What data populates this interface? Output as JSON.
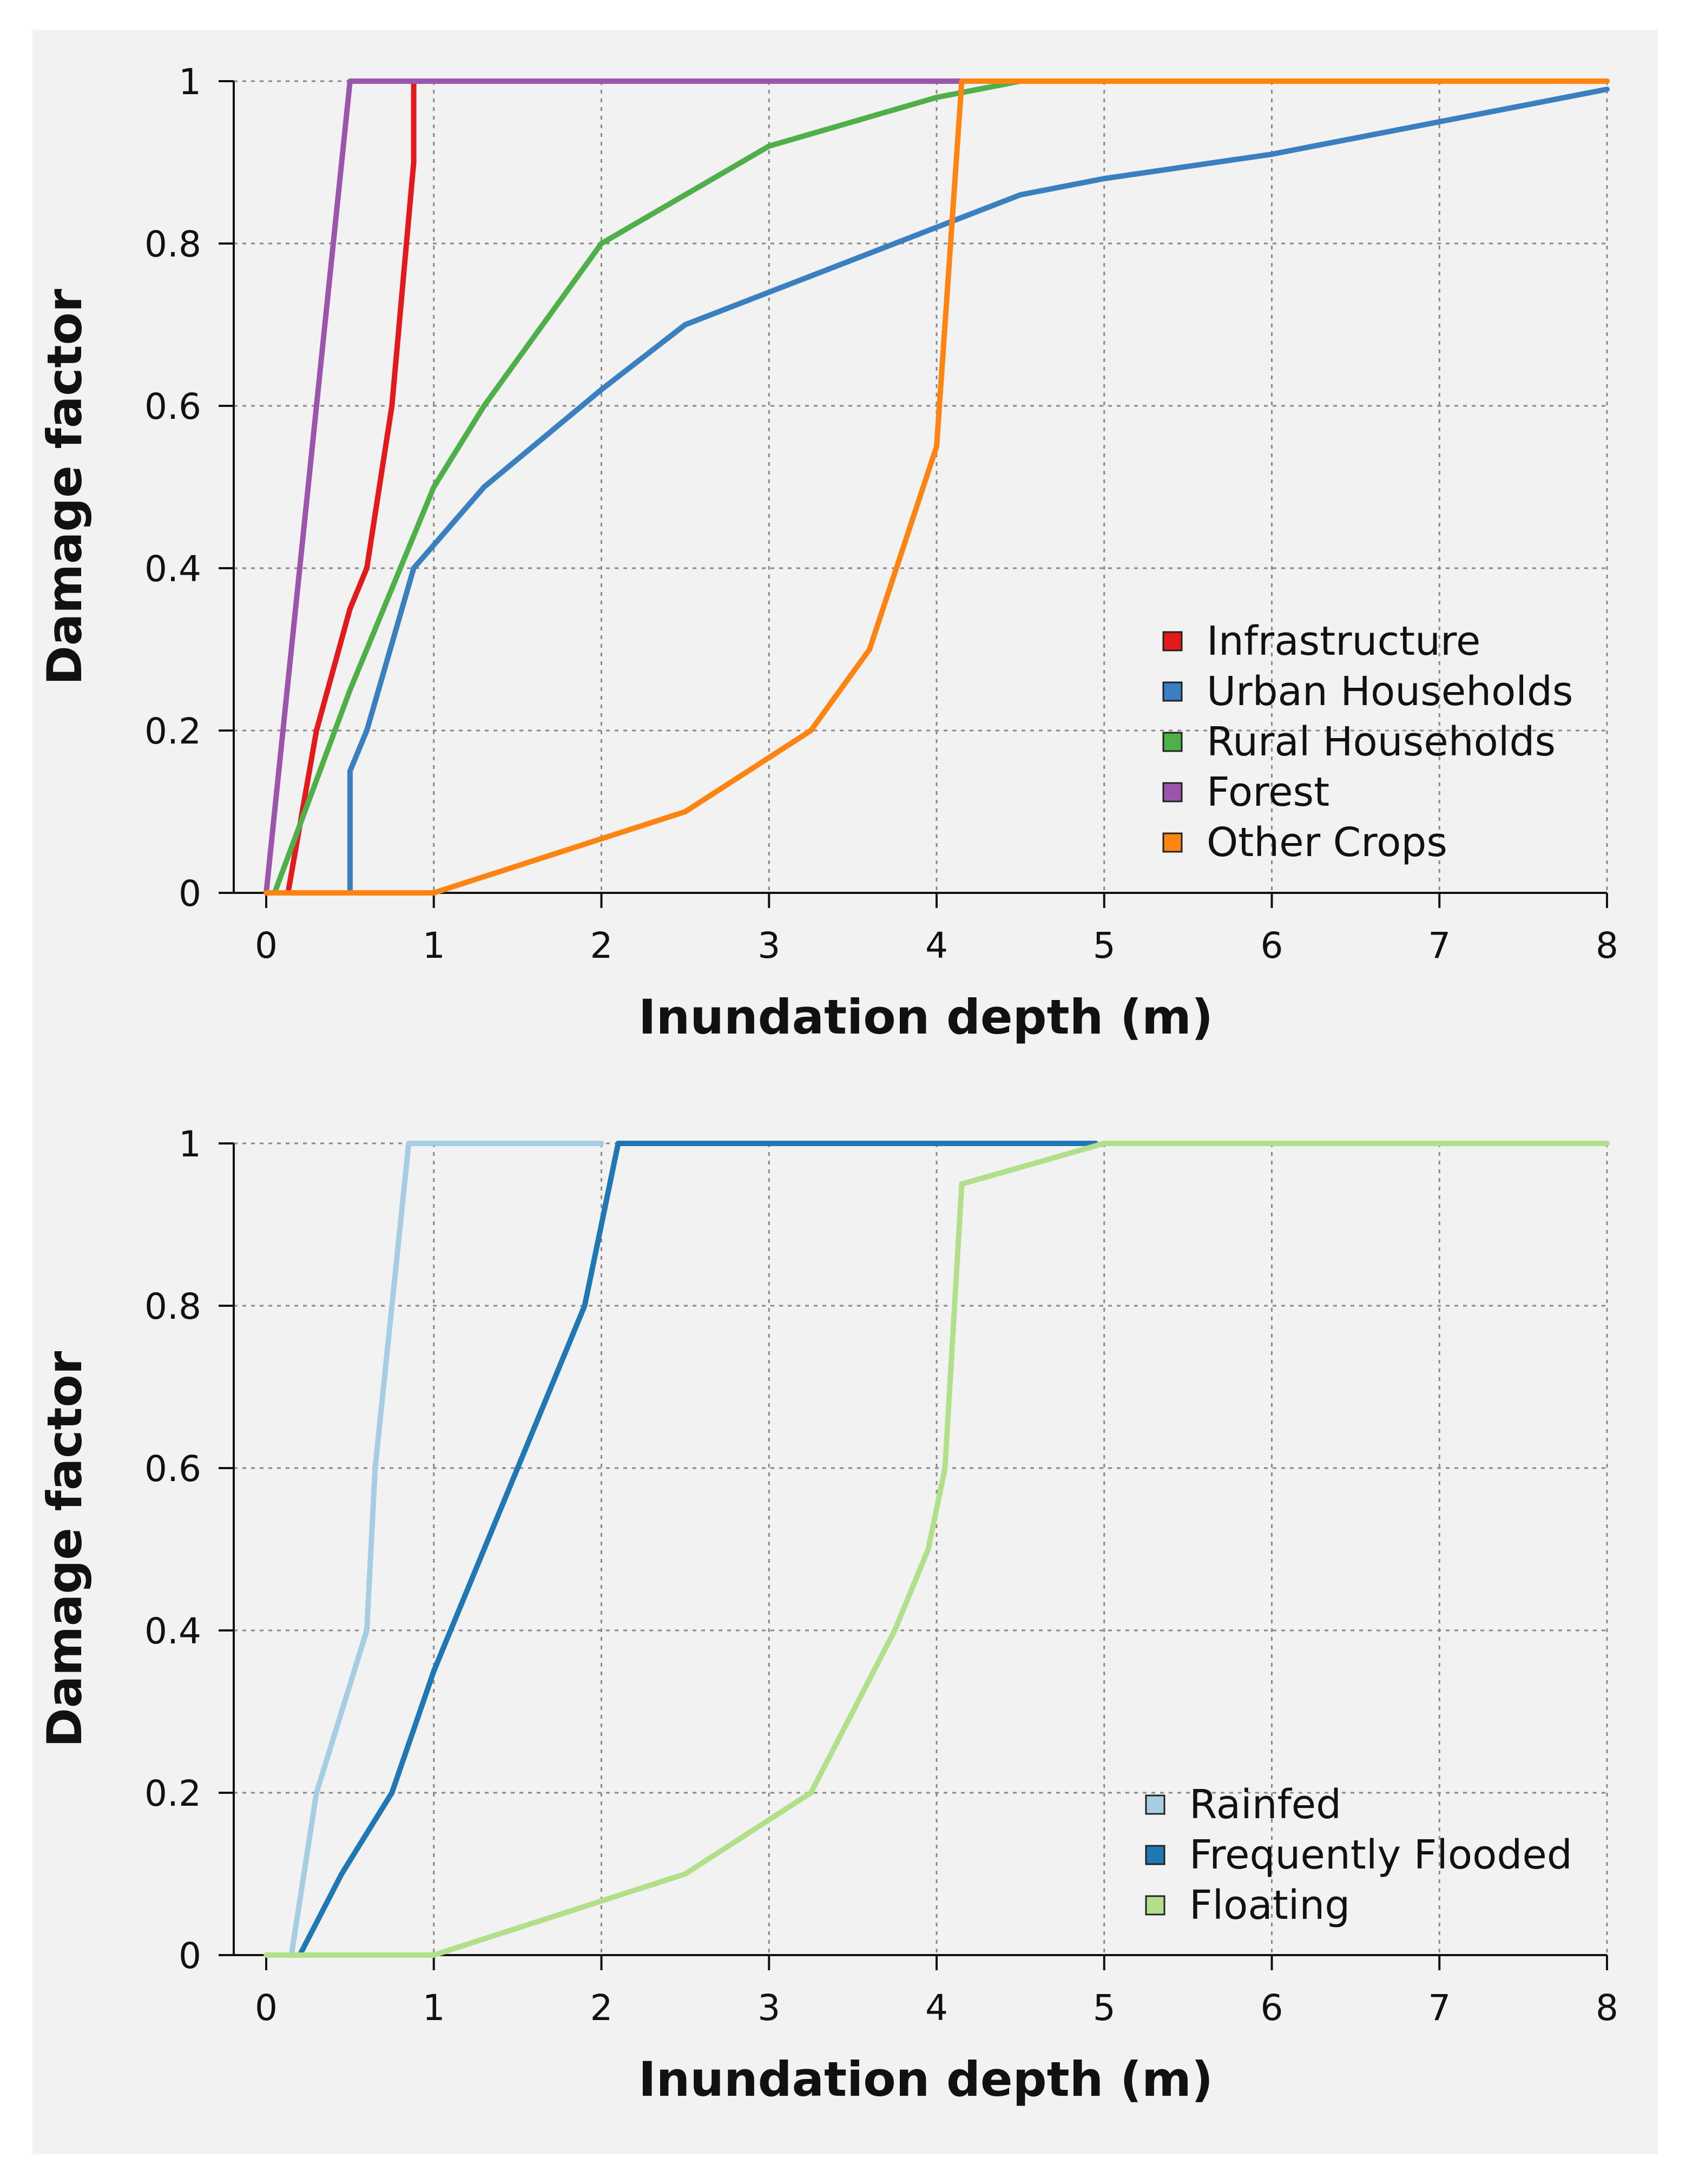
{
  "chart_data": [
    {
      "type": "line",
      "xlabel": "Inundation depth (m)",
      "ylabel": "Damage factor",
      "xlim": [
        0,
        8
      ],
      "ylim": [
        0,
        1
      ],
      "x_ticks": [
        "0",
        "1",
        "2",
        "3",
        "4",
        "5",
        "6",
        "7",
        "8"
      ],
      "y_ticks": [
        "0",
        "0.2",
        "0.4",
        "0.6",
        "0.8",
        "1"
      ],
      "grid": true,
      "legend_position": "lower-right",
      "series": [
        {
          "name": "Infrastructure",
          "color": "#e31a1c",
          "points": [
            [
              0.13,
              0
            ],
            [
              0.3,
              0.2
            ],
            [
              0.5,
              0.35
            ],
            [
              0.6,
              0.4
            ],
            [
              0.75,
              0.6
            ],
            [
              0.88,
              0.9
            ],
            [
              0.88,
              1.0
            ]
          ]
        },
        {
          "name": "Urban Households",
          "color": "#3a7fbf",
          "points": [
            [
              0.5,
              0
            ],
            [
              0.5,
              0.15
            ],
            [
              0.6,
              0.2
            ],
            [
              0.88,
              0.4
            ],
            [
              1.3,
              0.5
            ],
            [
              2.0,
              0.62
            ],
            [
              2.5,
              0.7
            ],
            [
              3.0,
              0.74
            ],
            [
              4.0,
              0.82
            ],
            [
              4.5,
              0.86
            ],
            [
              5.0,
              0.88
            ],
            [
              6.0,
              0.91
            ],
            [
              7.0,
              0.95
            ],
            [
              8.0,
              0.99
            ]
          ]
        },
        {
          "name": "Rural Households",
          "color": "#4fb04a",
          "points": [
            [
              0.05,
              0
            ],
            [
              0.5,
              0.25
            ],
            [
              1.0,
              0.5
            ],
            [
              1.3,
              0.6
            ],
            [
              2.0,
              0.8
            ],
            [
              3.0,
              0.92
            ],
            [
              4.0,
              0.98
            ],
            [
              4.5,
              1.0
            ]
          ]
        },
        {
          "name": "Forest",
          "color": "#9c55ad",
          "points": [
            [
              0.0,
              0
            ],
            [
              0.5,
              1.0
            ],
            [
              8.0,
              1.0
            ]
          ]
        },
        {
          "name": "Other Crops",
          "color": "#ff8412",
          "points": [
            [
              0.0,
              0
            ],
            [
              1.0,
              0
            ],
            [
              2.5,
              0.1
            ],
            [
              3.25,
              0.2
            ],
            [
              3.6,
              0.3
            ],
            [
              4.0,
              0.55
            ],
            [
              4.15,
              1.0
            ],
            [
              8.0,
              1.0
            ]
          ]
        }
      ]
    },
    {
      "type": "line",
      "xlabel": "Inundation depth (m)",
      "ylabel": "Damage factor",
      "xlim": [
        0,
        8
      ],
      "ylim": [
        0,
        1
      ],
      "x_ticks": [
        "0",
        "1",
        "2",
        "3",
        "4",
        "5",
        "6",
        "7",
        "8"
      ],
      "y_ticks": [
        "0",
        "0.2",
        "0.4",
        "0.6",
        "0.8",
        "1"
      ],
      "grid": true,
      "legend_position": "lower-right",
      "series": [
        {
          "name": "Rainfed",
          "color": "#a6cee3",
          "points": [
            [
              0.15,
              0
            ],
            [
              0.3,
              0.2
            ],
            [
              0.6,
              0.4
            ],
            [
              0.65,
              0.6
            ],
            [
              0.75,
              0.8
            ],
            [
              0.85,
              1.0
            ],
            [
              2.0,
              1.0
            ]
          ]
        },
        {
          "name": "Frequently Flooded",
          "color": "#1f78b4",
          "points": [
            [
              0.2,
              0
            ],
            [
              0.45,
              0.1
            ],
            [
              0.75,
              0.2
            ],
            [
              1.0,
              0.35
            ],
            [
              1.5,
              0.6
            ],
            [
              1.9,
              0.8
            ],
            [
              2.1,
              1.0
            ],
            [
              4.95,
              1.0
            ]
          ]
        },
        {
          "name": "Floating",
          "color": "#b2df8a",
          "points": [
            [
              0.0,
              0
            ],
            [
              1.0,
              0
            ],
            [
              2.5,
              0.1
            ],
            [
              3.25,
              0.2
            ],
            [
              3.75,
              0.4
            ],
            [
              3.95,
              0.5
            ],
            [
              4.05,
              0.6
            ],
            [
              4.15,
              0.95
            ],
            [
              5.0,
              1.0
            ],
            [
              8.0,
              1.0
            ]
          ]
        }
      ]
    }
  ]
}
